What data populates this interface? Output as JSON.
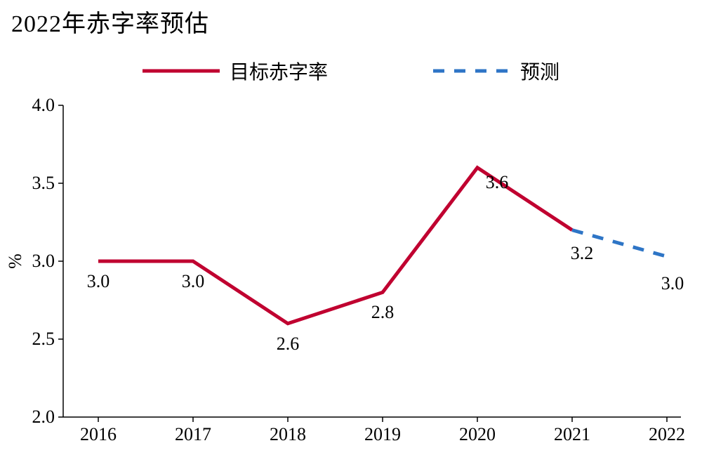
{
  "title": "2022年赤字率预估",
  "legend": {
    "series1": "目标赤字率",
    "series2": "预测"
  },
  "chart": {
    "type": "line",
    "y_axis": {
      "title": "%",
      "min": 2.0,
      "max": 4.0,
      "tick_step": 0.5,
      "ticks": [
        "2.0",
        "2.5",
        "3.0",
        "3.5",
        "4.0"
      ],
      "label_fontsize": 26
    },
    "x_axis": {
      "categories": [
        "2016",
        "2017",
        "2018",
        "2019",
        "2020",
        "2021",
        "2022"
      ],
      "label_fontsize": 26
    },
    "series": [
      {
        "name": "目标赤字率",
        "color": "#c00030",
        "line_width": 5,
        "dash": "solid",
        "points": [
          {
            "x": "2016",
            "y": 3.0,
            "label": "3.0"
          },
          {
            "x": "2017",
            "y": 3.0,
            "label": "3.0"
          },
          {
            "x": "2018",
            "y": 2.6,
            "label": "2.6"
          },
          {
            "x": "2019",
            "y": 2.8,
            "label": "2.8"
          },
          {
            "x": "2020",
            "y": 3.6,
            "label": "3.6"
          },
          {
            "x": "2021",
            "y": 3.2,
            "label": "3.2"
          }
        ]
      },
      {
        "name": "预测",
        "color": "#2e75c6",
        "line_width": 5,
        "dash": "16 14",
        "points": [
          {
            "x": "2021",
            "y": 3.2
          },
          {
            "x": "2022",
            "y": 3.03,
            "label": "3.0"
          }
        ]
      }
    ],
    "background_color": "#ffffff",
    "axis_color": "#000000",
    "tick_length_y": 7,
    "tick_length_x": 7
  }
}
